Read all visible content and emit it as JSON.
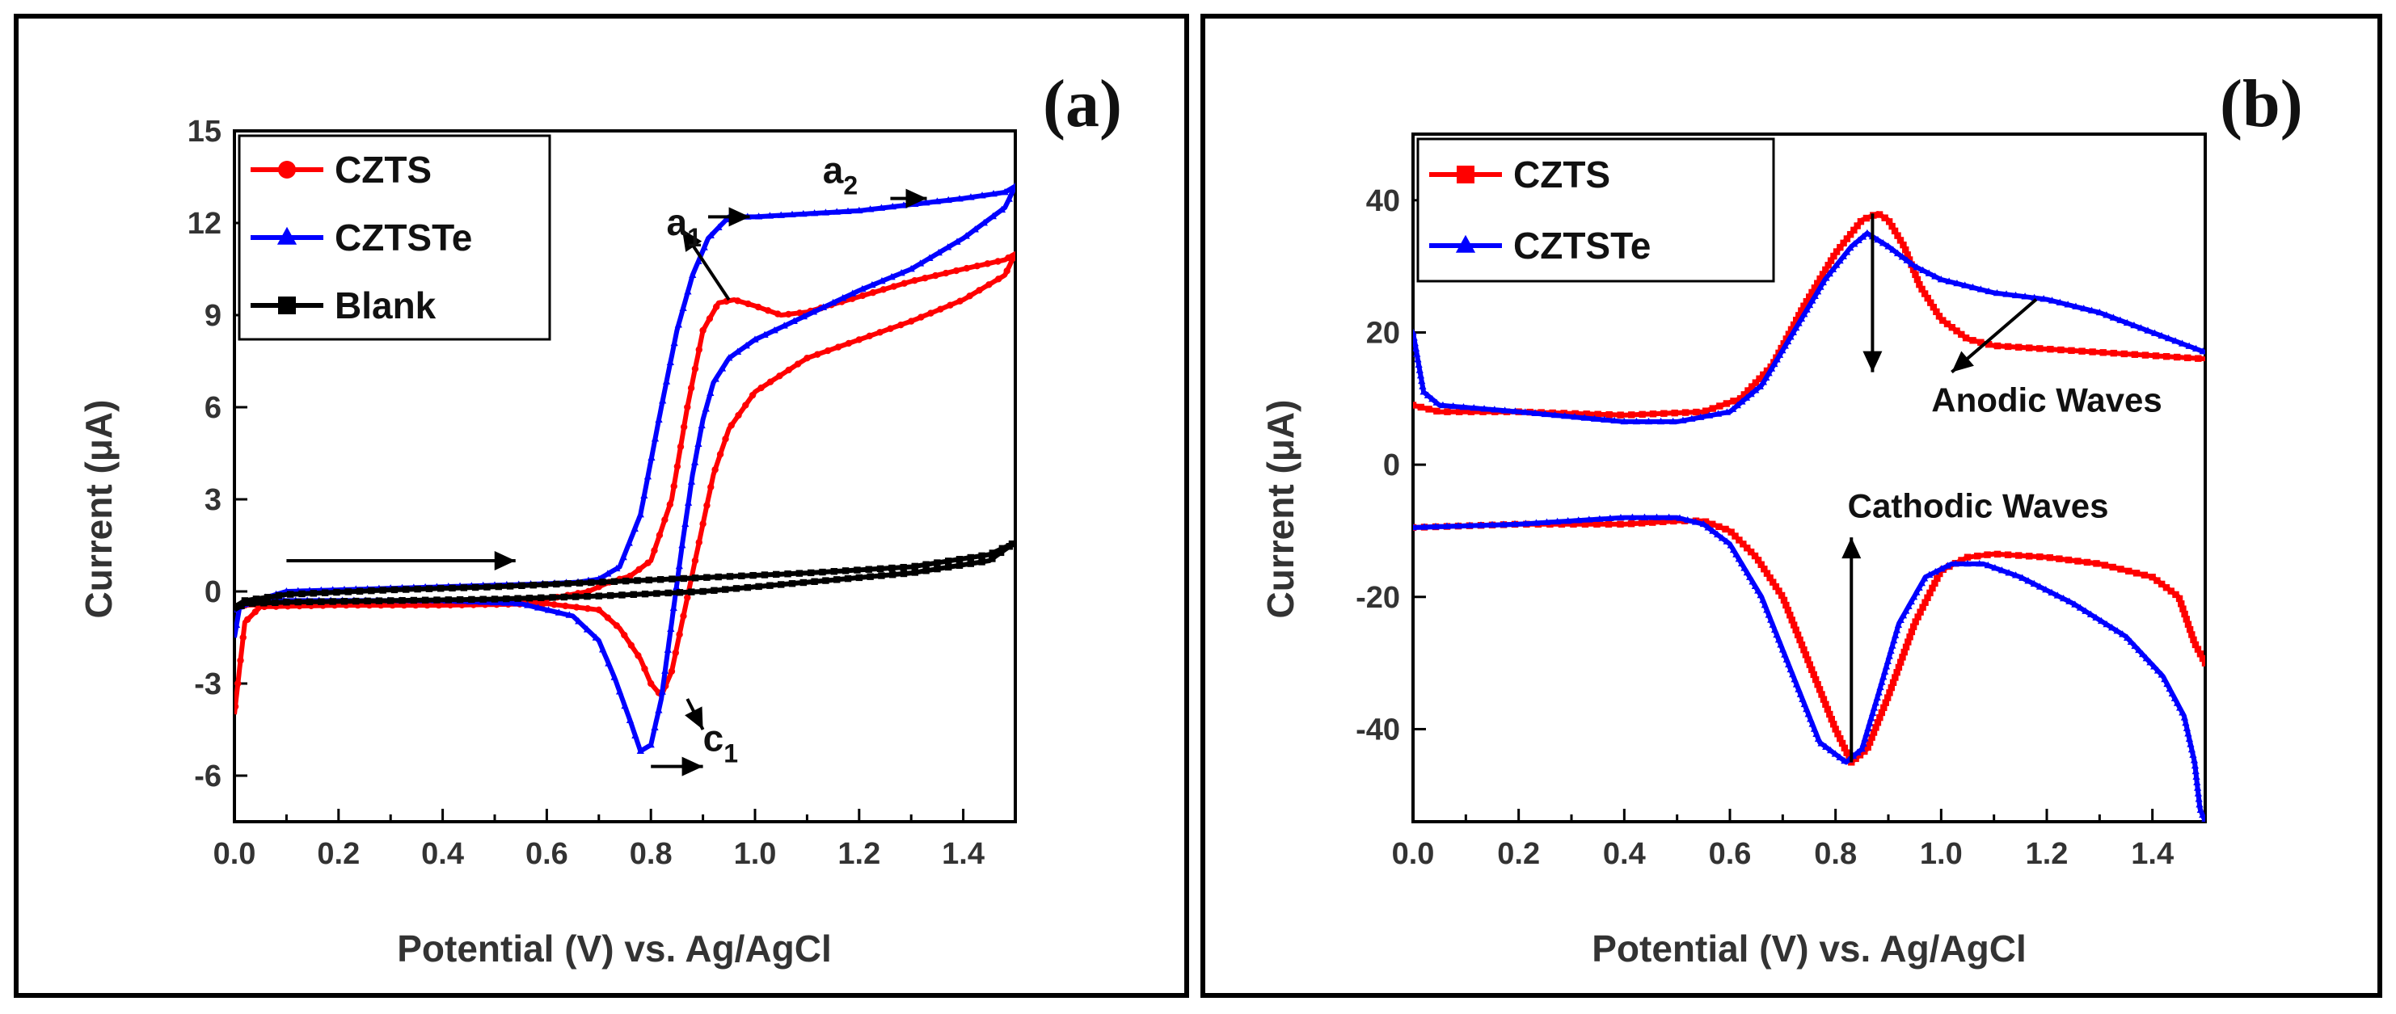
{
  "chart_data": [
    {
      "panel_label": "(a)",
      "type": "line",
      "xlabel": "Potential (V) vs. Ag/AgCl",
      "ylabel": "Current (μA)",
      "xlim": [
        0.0,
        1.5
      ],
      "ylim": [
        -7.5,
        15
      ],
      "xticks": [
        0.0,
        0.2,
        0.4,
        0.6,
        0.8,
        1.0,
        1.2,
        1.4
      ],
      "xtick_labels": [
        "0.0",
        "0.2",
        "0.4",
        "0.6",
        "0.8",
        "1.0",
        "1.2",
        "1.4"
      ],
      "yticks": [
        -6,
        -3,
        0,
        3,
        6,
        9,
        12,
        15
      ],
      "ytick_labels": [
        "-6",
        "-3",
        "0",
        "3",
        "6",
        "9",
        "12",
        "15"
      ],
      "legend": {
        "position": "top-left",
        "entries": [
          {
            "label": "CZTS",
            "color": "#ff0000",
            "marker": "circle"
          },
          {
            "label": "CZTSTe",
            "color": "#0000ff",
            "marker": "triangle"
          },
          {
            "label": "Blank",
            "color": "#000000",
            "marker": "square"
          }
        ]
      },
      "series": [
        {
          "name": "CZTS",
          "color": "#ff0000",
          "x": [
            0.0,
            0.02,
            0.1,
            0.3,
            0.5,
            0.6,
            0.68,
            0.72,
            0.76,
            0.8,
            0.84,
            0.87,
            0.9,
            0.93,
            0.96,
            1.0,
            1.05,
            1.1,
            1.2,
            1.3,
            1.4,
            1.48,
            1.5,
            1.48,
            1.4,
            1.3,
            1.2,
            1.1,
            1.0,
            0.95,
            0.92,
            0.9,
            0.88,
            0.86,
            0.84,
            0.82,
            0.8,
            0.78,
            0.74,
            0.7,
            0.6,
            0.4,
            0.2,
            0.05,
            0.02,
            0.01,
            0.0
          ],
          "y": [
            -0.5,
            -0.45,
            -0.4,
            -0.35,
            -0.3,
            -0.25,
            0.0,
            0.3,
            0.5,
            1.0,
            3.0,
            6.0,
            8.5,
            9.4,
            9.5,
            9.3,
            9.0,
            9.1,
            9.6,
            10.1,
            10.5,
            10.8,
            11.0,
            10.3,
            9.5,
            8.8,
            8.2,
            7.6,
            6.5,
            5.3,
            3.8,
            2.2,
            0.6,
            -1.0,
            -2.6,
            -3.4,
            -3.0,
            -2.2,
            -1.2,
            -0.6,
            -0.4,
            -0.45,
            -0.45,
            -0.5,
            -1.0,
            -2.5,
            -4.0
          ]
        },
        {
          "name": "CZTSTe",
          "color": "#0000ff",
          "x": [
            0.0,
            0.02,
            0.1,
            0.3,
            0.5,
            0.6,
            0.66,
            0.7,
            0.74,
            0.78,
            0.82,
            0.85,
            0.88,
            0.91,
            0.95,
            1.0,
            1.1,
            1.2,
            1.3,
            1.4,
            1.48,
            1.5,
            1.48,
            1.4,
            1.3,
            1.2,
            1.1,
            1.0,
            0.95,
            0.92,
            0.9,
            0.88,
            0.86,
            0.84,
            0.82,
            0.8,
            0.78,
            0.76,
            0.73,
            0.7,
            0.65,
            0.55,
            0.4,
            0.2,
            0.05,
            0.01,
            0.0
          ],
          "y": [
            -0.6,
            -0.4,
            0.0,
            0.1,
            0.2,
            0.25,
            0.3,
            0.4,
            0.8,
            2.5,
            6.0,
            8.5,
            10.3,
            11.5,
            12.2,
            12.2,
            12.3,
            12.4,
            12.6,
            12.8,
            13.0,
            13.2,
            12.5,
            11.5,
            10.5,
            9.8,
            9.0,
            8.2,
            7.6,
            6.8,
            5.6,
            3.8,
            1.5,
            -1.0,
            -3.5,
            -5.0,
            -5.2,
            -4.2,
            -2.8,
            -1.6,
            -0.8,
            -0.4,
            -0.3,
            -0.3,
            -0.3,
            -0.5,
            -1.5
          ]
        },
        {
          "name": "Blank",
          "color": "#000000",
          "x": [
            0.0,
            0.02,
            0.1,
            0.3,
            0.5,
            0.7,
            0.9,
            1.1,
            1.3,
            1.45,
            1.5,
            1.45,
            1.3,
            1.1,
            0.9,
            0.7,
            0.5,
            0.3,
            0.1,
            0.02,
            0.0
          ],
          "y": [
            -0.5,
            -0.3,
            -0.1,
            0.05,
            0.15,
            0.3,
            0.45,
            0.6,
            0.8,
            1.2,
            1.6,
            1.0,
            0.6,
            0.3,
            0.0,
            -0.15,
            -0.25,
            -0.3,
            -0.35,
            -0.4,
            -0.6
          ]
        }
      ],
      "annotations": [
        {
          "text": "a",
          "sub": "1",
          "x": 0.83,
          "y": 11.6
        },
        {
          "text": "a",
          "sub": "2",
          "x": 1.13,
          "y": 13.3
        },
        {
          "text": "c",
          "sub": "1",
          "x": 0.9,
          "y": -5.2
        }
      ],
      "arrows": [
        {
          "from": [
            0.1,
            1.0
          ],
          "to": [
            0.54,
            1.0
          ]
        },
        {
          "from": [
            0.91,
            12.2
          ],
          "to": [
            0.99,
            12.2
          ]
        },
        {
          "from": [
            1.26,
            12.8
          ],
          "to": [
            1.33,
            12.8
          ]
        },
        {
          "from": [
            0.95,
            9.5
          ],
          "to": [
            0.86,
            11.8
          ]
        },
        {
          "from": [
            0.87,
            -3.5
          ],
          "to": [
            0.9,
            -4.5
          ]
        },
        {
          "from": [
            0.8,
            -5.7
          ],
          "to": [
            0.9,
            -5.7
          ]
        }
      ]
    },
    {
      "panel_label": "(b)",
      "type": "line",
      "xlabel": "Potential (V) vs. Ag/AgCl",
      "ylabel": "Current (μA)",
      "xlim": [
        0.0,
        1.5
      ],
      "ylim": [
        -54,
        50
      ],
      "xticks": [
        0.0,
        0.2,
        0.4,
        0.6,
        0.8,
        1.0,
        1.2,
        1.4
      ],
      "xtick_labels": [
        "0.0",
        "0.2",
        "0.4",
        "0.6",
        "0.8",
        "1.0",
        "1.2",
        "1.4"
      ],
      "yticks": [
        -40,
        -20,
        0,
        20,
        40
      ],
      "ytick_labels": [
        "-40",
        "-20",
        "0",
        "20",
        "40"
      ],
      "legend": {
        "position": "top-left",
        "entries": [
          {
            "label": "CZTS",
            "color": "#ff0000",
            "marker": "square"
          },
          {
            "label": "CZTSTe",
            "color": "#0000ff",
            "marker": "triangle"
          }
        ]
      },
      "series": [
        {
          "name": "CZTS (anodic)",
          "color": "#ff0000",
          "x": [
            0.0,
            0.05,
            0.2,
            0.4,
            0.55,
            0.62,
            0.68,
            0.74,
            0.8,
            0.85,
            0.88,
            0.9,
            0.93,
            0.96,
            1.0,
            1.05,
            1.1,
            1.2,
            1.3,
            1.4,
            1.5
          ],
          "y": [
            9,
            8,
            8,
            7.5,
            8,
            10,
            15,
            24,
            32,
            37,
            38,
            37,
            33,
            27,
            22,
            19,
            18,
            17.5,
            17,
            16.5,
            16
          ]
        },
        {
          "name": "CZTSTe (anodic)",
          "color": "#0000ff",
          "x": [
            0.0,
            0.02,
            0.05,
            0.2,
            0.4,
            0.5,
            0.6,
            0.66,
            0.72,
            0.78,
            0.83,
            0.86,
            0.9,
            0.95,
            1.0,
            1.1,
            1.2,
            1.3,
            1.4,
            1.5
          ],
          "y": [
            20,
            11,
            9,
            8,
            6.5,
            6.5,
            8,
            12,
            20,
            28,
            33,
            35,
            33,
            30,
            28,
            26,
            25,
            23,
            20,
            17
          ]
        },
        {
          "name": "CZTS (cathodic)",
          "color": "#ff0000",
          "x": [
            0.0,
            0.2,
            0.4,
            0.5,
            0.55,
            0.6,
            0.65,
            0.7,
            0.75,
            0.8,
            0.83,
            0.86,
            0.9,
            0.95,
            1.0,
            1.05,
            1.1,
            1.2,
            1.3,
            1.4,
            1.45,
            1.48,
            1.5
          ],
          "y": [
            -9.5,
            -9,
            -9,
            -8.5,
            -8.5,
            -10,
            -14,
            -20,
            -30,
            -40,
            -45,
            -43,
            -35,
            -24,
            -16,
            -14,
            -13.5,
            -14,
            -15,
            -17,
            -20,
            -27,
            -30
          ]
        },
        {
          "name": "CZTSTe (cathodic)",
          "color": "#0000ff",
          "x": [
            0.0,
            0.2,
            0.4,
            0.5,
            0.55,
            0.6,
            0.66,
            0.72,
            0.77,
            0.82,
            0.85,
            0.88,
            0.92,
            0.97,
            1.02,
            1.08,
            1.15,
            1.25,
            1.35,
            1.42,
            1.46,
            1.48,
            1.49,
            1.5
          ],
          "y": [
            -9.5,
            -9,
            -8,
            -8,
            -9,
            -12,
            -20,
            -32,
            -42,
            -45,
            -43,
            -35,
            -24,
            -17,
            -15,
            -15,
            -17,
            -21,
            -26,
            -32,
            -38,
            -45,
            -52,
            -54
          ]
        }
      ],
      "annotations": [
        {
          "text": "Anodic Waves",
          "x": 1.2,
          "y": 8
        },
        {
          "text": "Cathodic Waves",
          "x": 1.07,
          "y": -8
        }
      ],
      "arrows": [
        {
          "from": [
            0.87,
            38
          ],
          "to": [
            0.87,
            14
          ]
        },
        {
          "from": [
            1.18,
            25
          ],
          "to": [
            1.02,
            14
          ]
        },
        {
          "from": [
            0.83,
            -45
          ],
          "to": [
            0.83,
            -11
          ]
        }
      ]
    }
  ]
}
